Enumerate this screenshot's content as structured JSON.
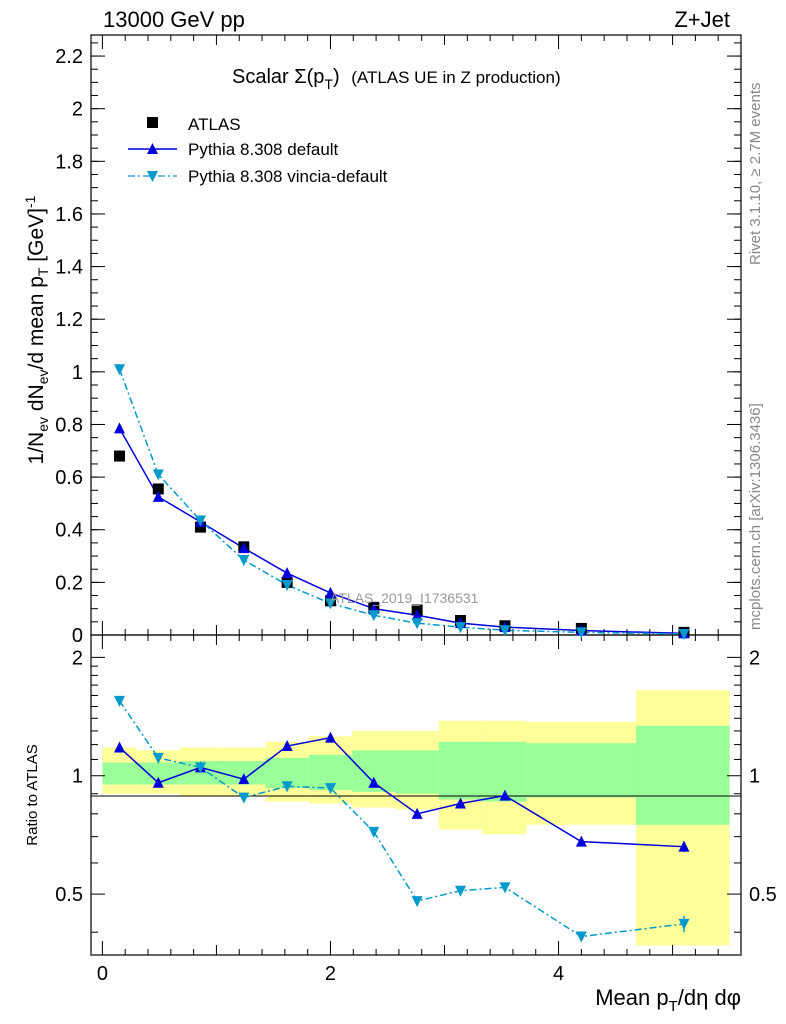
{
  "header": {
    "left": "13000 GeV pp",
    "right": "Z+Jet"
  },
  "plot": {
    "title_main": "Scalar Σ(p",
    "title_sub": "T",
    "title_close": ")",
    "title_detail": "(ATLAS UE in Z production)",
    "ylabel_main": "1/N",
    "ylabel_sub1": "ev",
    "ylabel_mid": " dN",
    "ylabel_sub2": "ev",
    "ylabel_mid2": "/d mean p",
    "ylabel_sub3": "T",
    "ylabel_unit": " [GeV]",
    "ylabel_sup": "-1",
    "ratio_ylabel": "Ratio to ATLAS",
    "xlabel_main": "Mean p",
    "xlabel_sub": "T",
    "xlabel_rest": "/dη dφ",
    "watermark": "ATLAS_2019_I1736531",
    "side_top": "Rivet 3.1.10, ≥ 2.7M events",
    "side_bottom": "mcplots.cern.ch [arXiv:1306.3436]"
  },
  "chart_data": {
    "type": "scatter",
    "x": [
      0.15,
      0.49,
      0.86,
      1.24,
      1.62,
      2.0,
      2.38,
      2.76,
      3.14,
      3.53,
      4.2,
      5.1
    ],
    "series": [
      {
        "name": "ATLAS",
        "color": "#000000",
        "marker": "square",
        "values": [
          0.68,
          0.555,
          0.41,
          0.335,
          0.2,
          0.13,
          0.105,
          0.095,
          0.055,
          0.035,
          0.025,
          0.01
        ]
      },
      {
        "name": "Pythia 8.308 default",
        "color": "#0000dd",
        "marker": "triangle-up",
        "line": "solid",
        "values": [
          0.785,
          0.525,
          0.43,
          0.33,
          0.235,
          0.16,
          0.1,
          0.075,
          0.045,
          0.03,
          0.017,
          0.006
        ]
      },
      {
        "name": "Pythia 8.308 vincia-default",
        "color": "#0099cc",
        "marker": "triangle-down",
        "line": "dashdot",
        "values": [
          1.01,
          0.61,
          0.435,
          0.285,
          0.19,
          0.12,
          0.075,
          0.045,
          0.03,
          0.018,
          0.01,
          0.004
        ]
      }
    ],
    "ratio": {
      "x_edges": [
        0.0,
        0.3,
        0.68,
        1.05,
        1.43,
        1.81,
        2.19,
        2.57,
        2.95,
        3.33,
        3.72,
        4.68,
        5.5
      ],
      "band_yellow": [
        [
          0.9,
          1.18
        ],
        [
          0.9,
          1.16
        ],
        [
          0.89,
          1.18
        ],
        [
          0.89,
          1.18
        ],
        [
          0.86,
          1.22
        ],
        [
          0.85,
          1.26
        ],
        [
          0.83,
          1.3
        ],
        [
          0.82,
          1.3
        ],
        [
          0.73,
          1.38
        ],
        [
          0.71,
          1.38
        ],
        [
          0.75,
          1.37
        ],
        [
          0.37,
          1.65
        ]
      ],
      "band_green": [
        [
          0.95,
          1.08
        ],
        [
          0.95,
          1.08
        ],
        [
          0.95,
          1.09
        ],
        [
          0.95,
          1.09
        ],
        [
          0.93,
          1.11
        ],
        [
          0.92,
          1.13
        ],
        [
          0.91,
          1.16
        ],
        [
          0.9,
          1.16
        ],
        [
          0.87,
          1.22
        ],
        [
          0.86,
          1.22
        ],
        [
          0.88,
          1.21
        ],
        [
          0.75,
          1.34
        ]
      ],
      "default": [
        1.18,
        0.96,
        1.05,
        0.98,
        1.19,
        1.25,
        0.96,
        0.8,
        0.85,
        0.89,
        0.68,
        0.66
      ],
      "vincia": [
        1.55,
        1.11,
        1.05,
        0.88,
        0.94,
        0.93,
        0.72,
        0.48,
        0.51,
        0.52,
        0.39,
        0.42
      ]
    },
    "xlim": [
      -0.1,
      5.6
    ],
    "ylim_main": [
      0,
      2.28
    ],
    "ylim_ratio": [
      0.35,
      2.28
    ],
    "xticks": [
      "0",
      "2",
      "4"
    ],
    "xtick_values": [
      0,
      2,
      4
    ],
    "main_yticks": [
      "0",
      "0.2",
      "0.4",
      "0.6",
      "0.8",
      "1",
      "1.2",
      "1.4",
      "1.6",
      "1.8",
      "2",
      "2.2"
    ],
    "main_ytick_values": [
      0,
      0.2,
      0.4,
      0.6,
      0.8,
      1.0,
      1.2,
      1.4,
      1.6,
      1.8,
      2.0,
      2.2
    ],
    "ratio_yticks": [
      "0.5",
      "1",
      "2"
    ],
    "ratio_ytick_values": [
      0.5,
      1,
      2
    ],
    "ratio_scale": "log",
    "legend_position": "top-left"
  }
}
